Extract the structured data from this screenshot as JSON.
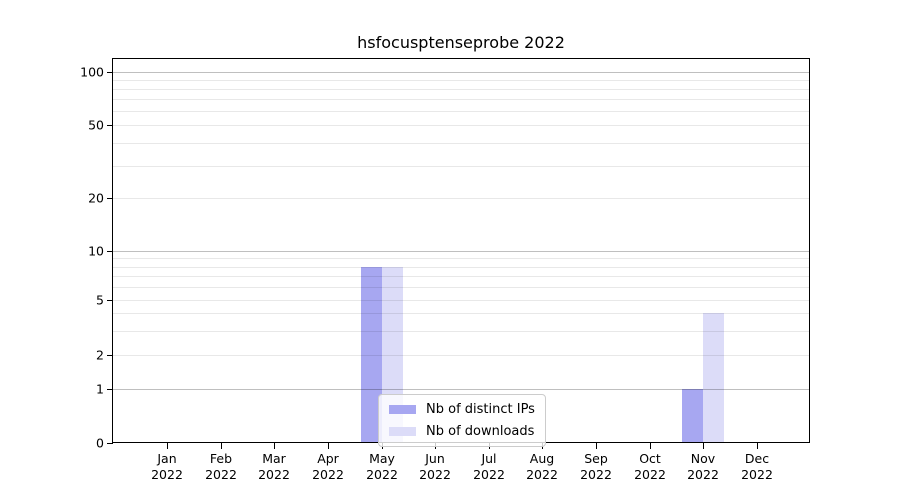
{
  "chart_data": {
    "type": "bar",
    "title": "hsfocusptenseprobe 2022",
    "year_label": "2022",
    "categories": [
      "Jan",
      "Feb",
      "Mar",
      "Apr",
      "May",
      "Jun",
      "Jul",
      "Aug",
      "Sep",
      "Oct",
      "Nov",
      "Dec"
    ],
    "series": [
      {
        "name": "Nb of distinct IPs",
        "color": "#a7a7f1",
        "values": [
          0,
          0,
          0,
          0,
          8,
          0,
          0,
          0,
          0,
          0,
          1,
          0
        ]
      },
      {
        "name": "Nb of downloads",
        "color": "#dcdcf8",
        "values": [
          0,
          0,
          0,
          0,
          8,
          0,
          0,
          0,
          0,
          0,
          4,
          0
        ]
      }
    ],
    "yaxis": {
      "scale": "symlog",
      "tick_labels": [
        0,
        1,
        2,
        5,
        10,
        20,
        50,
        100
      ],
      "minor_gridlines": [
        3,
        4,
        6,
        7,
        8,
        9,
        30,
        40,
        60,
        70,
        80,
        90
      ],
      "ylim": [
        0,
        120
      ]
    },
    "xlabel": "",
    "ylabel": "",
    "grid": true,
    "legend": {
      "location": "inside-bottom-center",
      "labels": [
        "Nb of distinct IPs",
        "Nb of downloads"
      ]
    }
  }
}
